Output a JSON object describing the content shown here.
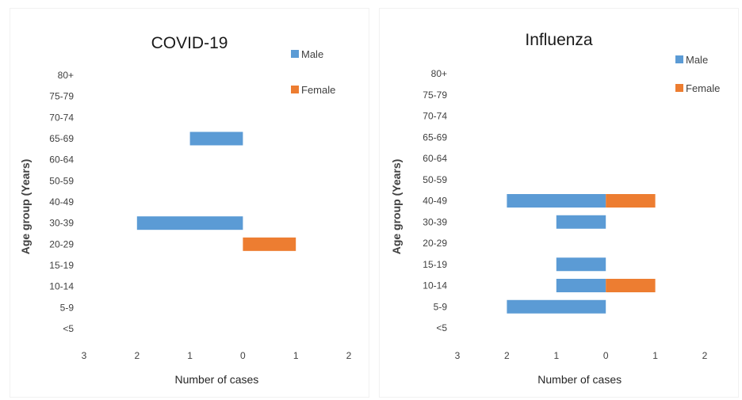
{
  "chart_data": [
    {
      "type": "bar",
      "orientation": "horizontal",
      "title": "COVID-19",
      "xlabel": "Number of cases",
      "ylabel": "Age group (Years)",
      "categories": [
        "<5",
        "5-9",
        "10-14",
        "15-19",
        "20-29",
        "30-39",
        "40-49",
        "50-59",
        "60-64",
        "65-69",
        "70-74",
        "75-79",
        "80+"
      ],
      "x_ticks": [
        "3",
        "2",
        "1",
        "0",
        "1",
        "2"
      ],
      "xlim": [
        -3,
        2
      ],
      "grid": false,
      "legend_position": "top-right",
      "series": [
        {
          "name": "Male",
          "color": "#5B9BD5",
          "values": [
            0,
            0,
            0,
            0,
            0,
            -2,
            0,
            0,
            0,
            -1,
            0,
            0,
            0
          ]
        },
        {
          "name": "Female",
          "color": "#ED7D31",
          "values": [
            0,
            0,
            0,
            0,
            1,
            0,
            0,
            0,
            0,
            0,
            0,
            0,
            0
          ]
        }
      ]
    },
    {
      "type": "bar",
      "orientation": "horizontal",
      "title": "Influenza",
      "xlabel": "Number of cases",
      "ylabel": "Age group (Years)",
      "categories": [
        "<5",
        "5-9",
        "10-14",
        "15-19",
        "20-29",
        "30-39",
        "40-49",
        "50-59",
        "60-64",
        "65-69",
        "70-74",
        "75-79",
        "80+"
      ],
      "x_ticks": [
        "3",
        "2",
        "1",
        "0",
        "1",
        "2"
      ],
      "xlim": [
        -3,
        2
      ],
      "grid": false,
      "legend_position": "top-right",
      "series": [
        {
          "name": "Male",
          "color": "#5B9BD5",
          "values": [
            0,
            -2,
            -1,
            -1,
            0,
            -1,
            -2,
            0,
            0,
            0,
            0,
            0,
            0
          ]
        },
        {
          "name": "Female",
          "color": "#ED7D31",
          "values": [
            0,
            0,
            1,
            0,
            0,
            0,
            1,
            0,
            0,
            0,
            0,
            0,
            0
          ]
        }
      ]
    }
  ]
}
